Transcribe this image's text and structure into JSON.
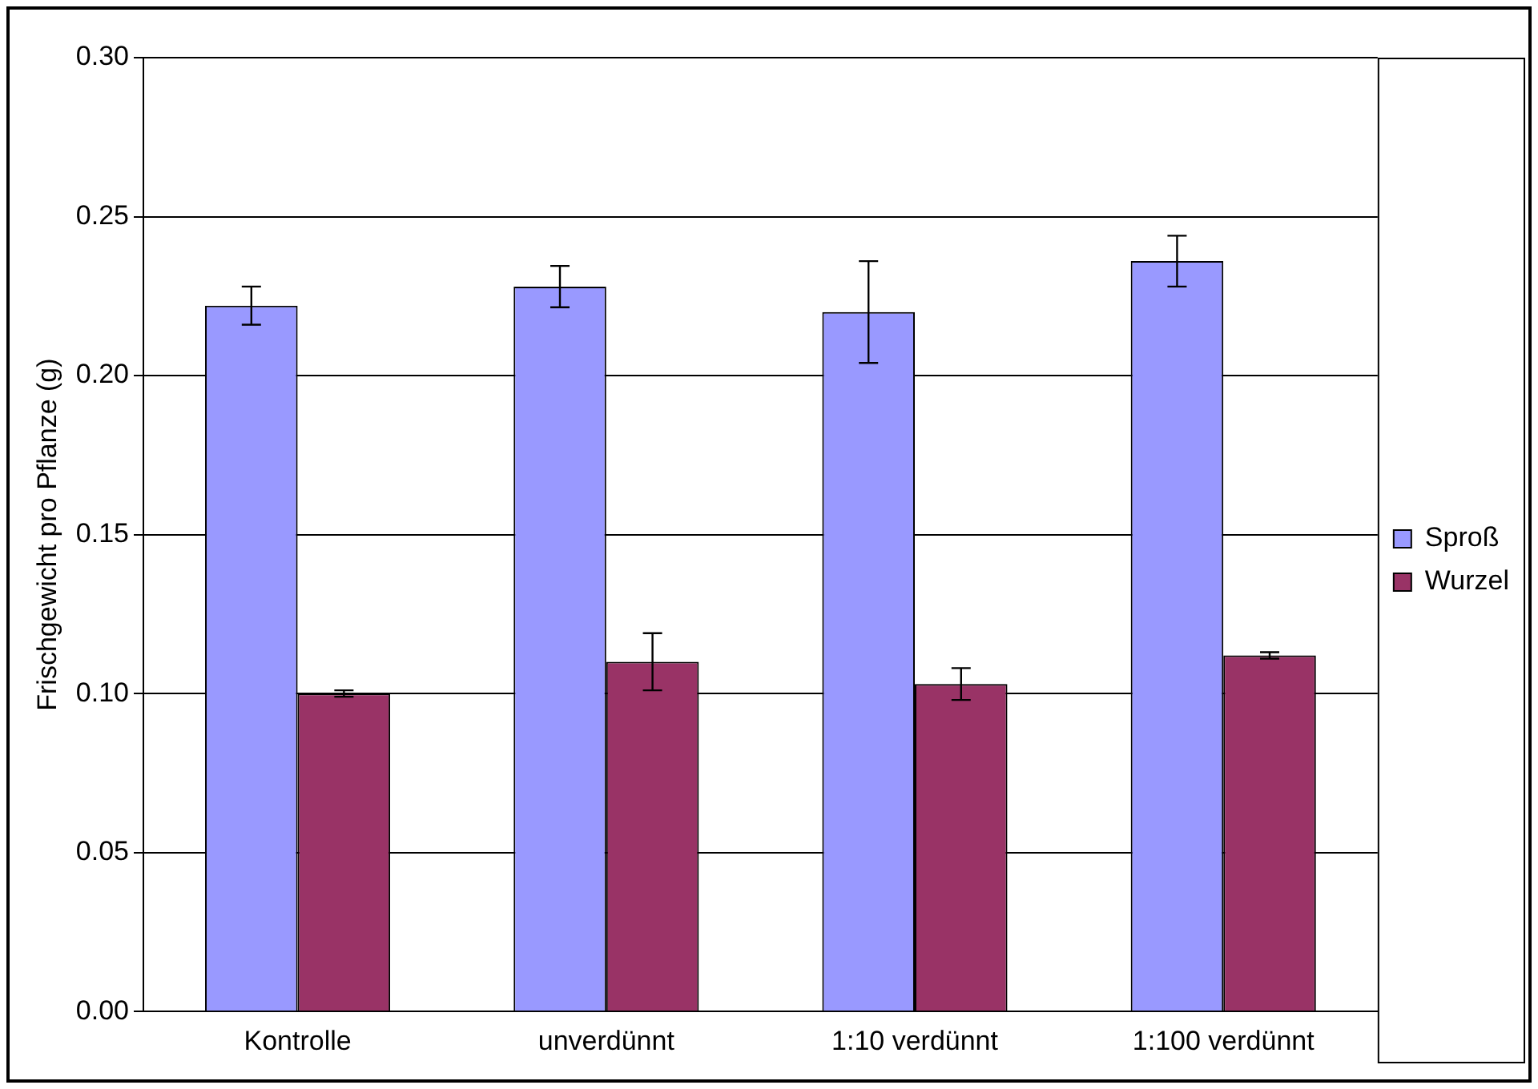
{
  "chart_data": {
    "type": "bar",
    "ylabel": "Frischgewicht pro Pflanze (g)",
    "categories": [
      "Kontrolle",
      "unverdünnt",
      "1:10 verdünnt",
      "1:100 verdünnt"
    ],
    "series": [
      {
        "name": "Sproß",
        "color": "#9999ff",
        "values": [
          0.222,
          0.228,
          0.22,
          0.236
        ],
        "errors": [
          0.006,
          0.0065,
          0.016,
          0.008
        ]
      },
      {
        "name": "Wurzel",
        "color": "#993366",
        "values": [
          0.1,
          0.11,
          0.103,
          0.112
        ],
        "errors": [
          0.001,
          0.009,
          0.005,
          0.001
        ]
      }
    ],
    "ylim": [
      0,
      0.3
    ],
    "yticks": [
      {
        "value": 0,
        "label": "0.00"
      },
      {
        "value": 0.05,
        "label": "0.05"
      },
      {
        "value": 0.1,
        "label": "0.10"
      },
      {
        "value": 0.15,
        "label": "0.15"
      },
      {
        "value": 0.2,
        "label": "0.20"
      },
      {
        "value": 0.25,
        "label": "0.25"
      },
      {
        "value": 0.3,
        "label": "0.30"
      }
    ],
    "grid": "y",
    "legend": "right"
  }
}
